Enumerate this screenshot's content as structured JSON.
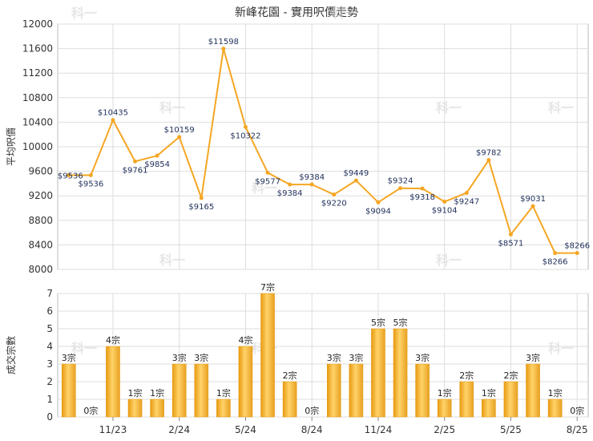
{
  "chart_data": [
    {
      "type": "line",
      "title": "新峰花園 - 實用呎價走勢",
      "ylabel": "平均呎價",
      "ylim": [
        8000,
        12000
      ],
      "yticks": [
        8000,
        8400,
        8800,
        9200,
        9600,
        10000,
        10400,
        10800,
        11200,
        11600,
        12000
      ],
      "grid": true,
      "color": "#F5A623",
      "points": [
        9536,
        9536,
        10435,
        9761,
        9854,
        10159,
        9165,
        11598,
        10322,
        9577,
        9384,
        9384,
        9220,
        9449,
        9094,
        9324,
        9318,
        9104,
        9247,
        9782,
        8571,
        9031,
        8266,
        8266
      ],
      "labels": [
        "$9536",
        "$9536",
        "$10435",
        "$9761",
        "$9854",
        "$10159",
        "$9165",
        "$11598",
        "$10322",
        "$9577",
        "$9384",
        "$9384",
        "$9220",
        "$9449",
        "$9094",
        "$9324",
        "$9318",
        "$9104",
        "$9247",
        "$9782",
        "$8571",
        "$9031",
        "$8266",
        "$8266"
      ]
    },
    {
      "type": "bar",
      "ylabel": "成交宗數",
      "ylim": [
        0,
        7
      ],
      "yticks": [
        0,
        1,
        2,
        3,
        4,
        5,
        6,
        7
      ],
      "grid": true,
      "color": "#F5A623",
      "values": [
        3,
        0,
        4,
        1,
        1,
        3,
        3,
        1,
        4,
        7,
        2,
        0,
        3,
        3,
        5,
        5,
        3,
        1,
        2,
        1,
        2,
        3,
        1,
        0
      ],
      "labels": [
        "3宗",
        "0宗",
        "4宗",
        "1宗",
        "1宗",
        "3宗",
        "3宗",
        "1宗",
        "4宗",
        "7宗",
        "2宗",
        "0宗",
        "3宗",
        "3宗",
        "5宗",
        "5宗",
        "3宗",
        "1宗",
        "2宗",
        "1宗",
        "2宗",
        "3宗",
        "1宗",
        "0宗"
      ],
      "x_tick_labels": [
        "11/23",
        "2/24",
        "5/24",
        "8/24",
        "11/24",
        "2/25",
        "5/25",
        "8/25"
      ]
    }
  ],
  "watermark": "科一"
}
